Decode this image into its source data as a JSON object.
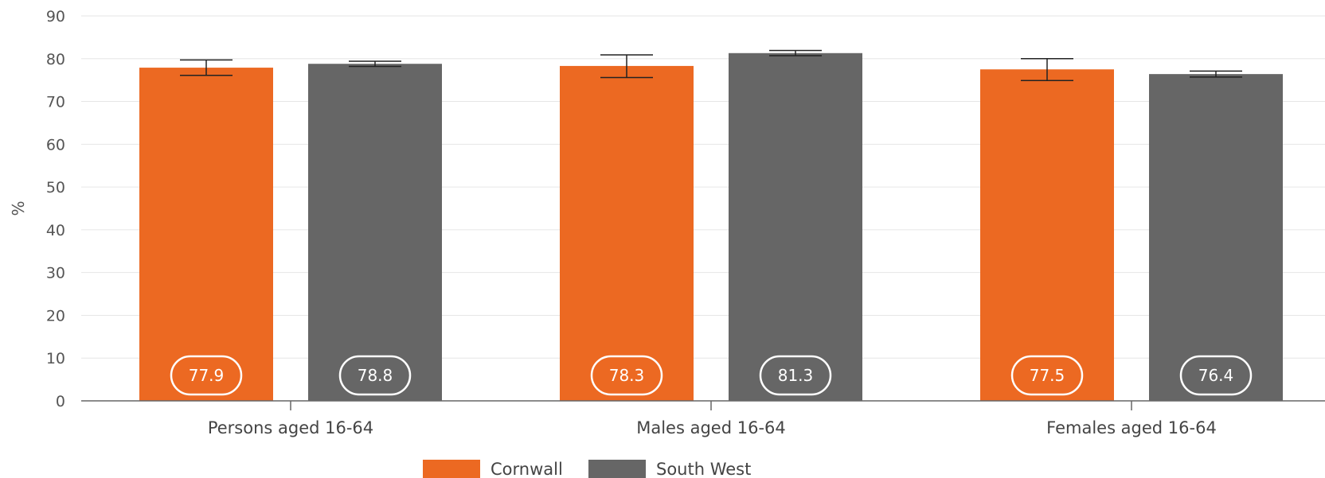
{
  "chart_data": {
    "type": "bar",
    "categories": [
      "Persons aged 16-64",
      "Males aged 16-64",
      "Females aged 16-64"
    ],
    "series": [
      {
        "name": "Cornwall",
        "color": "#ec6922",
        "values": [
          77.9,
          78.3,
          77.5
        ],
        "error_low": [
          76.1,
          75.6,
          74.9
        ],
        "error_high": [
          79.7,
          80.9,
          80.0
        ],
        "labels": [
          "77.9",
          "78.3",
          "77.5"
        ]
      },
      {
        "name": "South West",
        "color": "#666666",
        "values": [
          78.8,
          81.3,
          76.4
        ],
        "error_low": [
          78.2,
          80.7,
          75.7
        ],
        "error_high": [
          79.4,
          81.9,
          77.1
        ],
        "labels": [
          "78.8",
          "81.3",
          "76.4"
        ]
      }
    ],
    "ylabel": "%",
    "ylim": [
      0,
      90
    ],
    "yticks": [
      0,
      10,
      20,
      30,
      40,
      50,
      60,
      70,
      80,
      90
    ],
    "grid": true,
    "legend_position": "bottom"
  }
}
